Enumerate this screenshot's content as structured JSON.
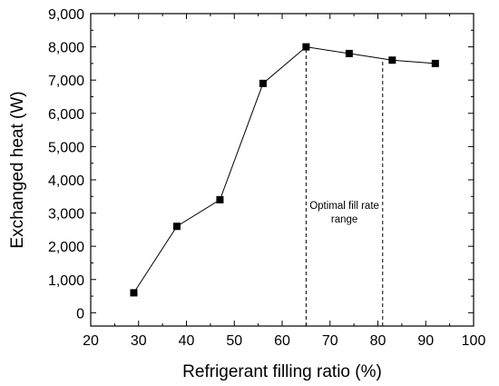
{
  "chart_data": {
    "type": "line",
    "title": "",
    "xlabel": "Refrigerant filling ratio (%)",
    "ylabel": "Exchanged heat (W)",
    "xlim": [
      20,
      100
    ],
    "ylim": [
      -400,
      9000
    ],
    "x_ticks": [
      20,
      30,
      40,
      50,
      60,
      70,
      80,
      90,
      100
    ],
    "x_tick_labels": [
      "20",
      "30",
      "40",
      "50",
      "60",
      "70",
      "80",
      "90",
      "100"
    ],
    "y_ticks": [
      0,
      1000,
      2000,
      3000,
      4000,
      5000,
      6000,
      7000,
      8000,
      9000
    ],
    "y_tick_labels": [
      "0",
      "1,000",
      "2,000",
      "3,000",
      "4,000",
      "5,000",
      "6,000",
      "7,000",
      "8,000",
      "9,000"
    ],
    "grid": false,
    "legend": "none",
    "series": [
      {
        "marker": "square",
        "color": "#000000",
        "x": [
          29,
          38,
          47,
          56,
          65,
          74,
          83,
          92
        ],
        "y": [
          600,
          2600,
          3400,
          6900,
          8000,
          7800,
          7600,
          7500
        ]
      }
    ],
    "annotations": [
      {
        "type": "vline",
        "x": 65,
        "style": "dashed"
      },
      {
        "type": "vline",
        "x": 81,
        "style": "dashed"
      },
      {
        "type": "text",
        "lines": [
          "Optimal fill rate",
          "range"
        ]
      }
    ]
  }
}
